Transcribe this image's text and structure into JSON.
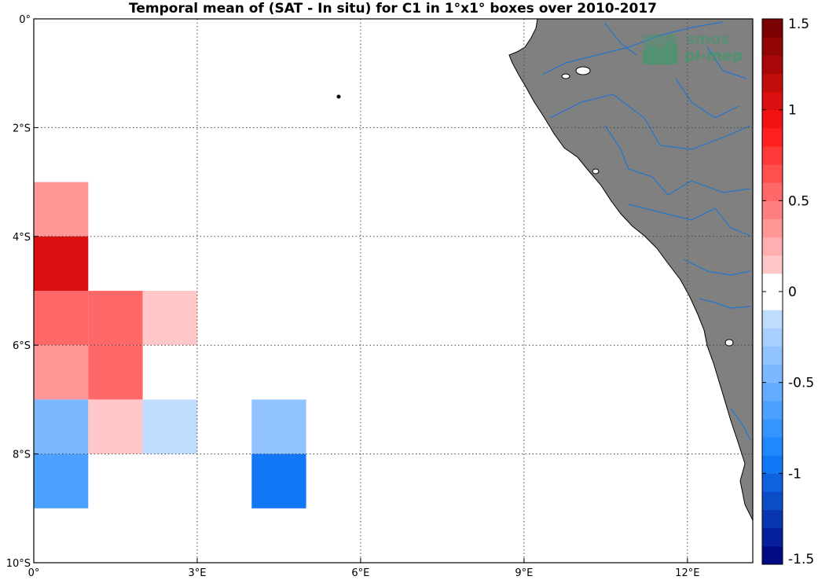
{
  "chart_data": {
    "type": "heatmap",
    "title": "Temporal mean of (SAT - In situ) for C1 in 1°x1° boxes over 2010-2017",
    "xlabel": "",
    "ylabel": "",
    "x_ticks": [
      {
        "value": 0,
        "label": "0°"
      },
      {
        "value": 3,
        "label": "3°E"
      },
      {
        "value": 6,
        "label": "6°E"
      },
      {
        "value": 9,
        "label": "9°E"
      },
      {
        "value": 12,
        "label": "12°E"
      }
    ],
    "y_ticks": [
      {
        "value": 0,
        "label": "0°"
      },
      {
        "value": -2,
        "label": "2°S"
      },
      {
        "value": -4,
        "label": "4°S"
      },
      {
        "value": -6,
        "label": "6°S"
      },
      {
        "value": -8,
        "label": "8°S"
      },
      {
        "value": -10,
        "label": "10°S"
      }
    ],
    "xlim": [
      0,
      13.2
    ],
    "ylim": [
      -10,
      0
    ],
    "grid": true,
    "colorbar": {
      "vmin": -1.5,
      "vmax": 1.5,
      "levels": 30,
      "tick_values": [
        1.5,
        1,
        0.5,
        0,
        -0.5,
        -1,
        -1.5
      ],
      "tick_labels": [
        "1.5",
        "1",
        "0.5",
        "0",
        "-0.5",
        "-1",
        "-1.5"
      ]
    },
    "cells": [
      {
        "lon": 0,
        "lat": -3,
        "value": 0.4
      },
      {
        "lon": 0,
        "lat": -4,
        "value": 1.0
      },
      {
        "lon": 0,
        "lat": -5,
        "value": 0.55
      },
      {
        "lon": 1,
        "lat": -5,
        "value": 0.55
      },
      {
        "lon": 2,
        "lat": -5,
        "value": 0.15
      },
      {
        "lon": 0,
        "lat": -6,
        "value": 0.3
      },
      {
        "lon": 1,
        "lat": -6,
        "value": 0.55
      },
      {
        "lon": 0,
        "lat": -7,
        "value": -0.45
      },
      {
        "lon": 1,
        "lat": -7,
        "value": 0.15
      },
      {
        "lon": 2,
        "lat": -7,
        "value": -0.15
      },
      {
        "lon": 0,
        "lat": -8,
        "value": -0.65
      },
      {
        "lon": 4,
        "lat": -7,
        "value": -0.35
      },
      {
        "lon": 4,
        "lat": -8,
        "value": -0.9
      }
    ]
  },
  "colors": {
    "land": "#808080",
    "river": "#2277cc",
    "grid": "#444444"
  },
  "logo": {
    "line1": "smos",
    "line2": "pi-mep",
    "color": "#3a9b6a"
  }
}
